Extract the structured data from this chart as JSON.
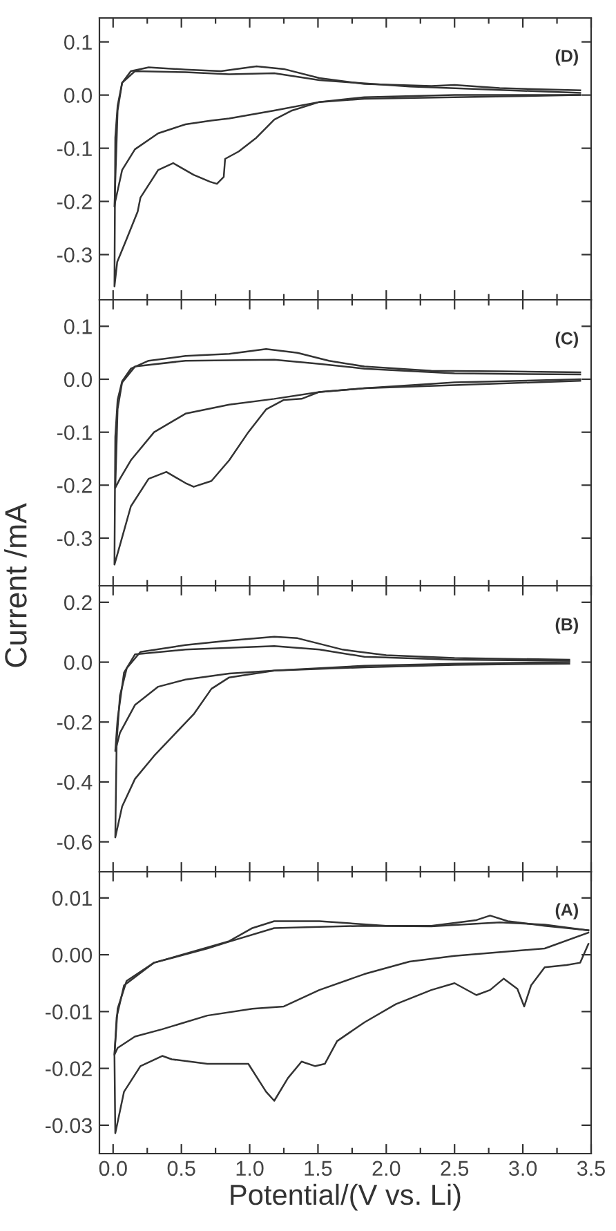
{
  "chart_data": [
    {
      "type": "line",
      "annotations": [
        "(D)"
      ],
      "tick_labels": "y",
      "grid": false,
      "legend": false,
      "xlim": [
        -0.1,
        3.5
      ],
      "ylim": [
        -0.385,
        0.145
      ],
      "xticks": [
        {
          "value": 0,
          "label": null
        },
        {
          "value": 0.25,
          "label": null
        },
        {
          "value": 0.5,
          "label": null
        },
        {
          "value": 0.75,
          "label": null
        },
        {
          "value": 1,
          "label": null
        },
        {
          "value": 1.25,
          "label": null
        },
        {
          "value": 1.5,
          "label": null
        },
        {
          "value": 1.75,
          "label": null
        },
        {
          "value": 2,
          "label": null
        },
        {
          "value": 2.25,
          "label": null
        },
        {
          "value": 2.5,
          "label": null
        },
        {
          "value": 2.75,
          "label": null
        },
        {
          "value": 3,
          "label": null
        },
        {
          "value": 3.25,
          "label": null
        },
        {
          "value": 3.5,
          "label": null
        }
      ],
      "yticks": [
        {
          "value": -0.3,
          "label": "-0.3"
        },
        {
          "value": -0.2,
          "label": "-0.2"
        },
        {
          "value": -0.1,
          "label": "-0.1"
        },
        {
          "value": 0,
          "label": "0.0"
        },
        {
          "value": 0.1,
          "label": "0.1"
        }
      ],
      "series": [
        {
          "color": "#333333",
          "x": [
            3.42,
            2.5,
            1.84,
            1.51,
            1.31,
            1.18,
            1.05,
            0.92,
            0.82,
            0.81,
            0.76,
            0.71,
            0.59,
            0.44,
            0.33,
            0.2,
            0.18,
            0.1,
            0.03,
            0.01,
            0.016,
            0.033,
            0.066,
            0.13,
            0.26,
            0.53,
            0.79,
            1.05,
            1.25,
            1.51,
            1.84,
            2.33,
            2.5,
            2.83,
            3.42
          ],
          "values": [
            0.0,
            -0.004,
            -0.007,
            -0.013,
            -0.029,
            -0.046,
            -0.08,
            -0.106,
            -0.12,
            -0.154,
            -0.167,
            -0.163,
            -0.15,
            -0.128,
            -0.141,
            -0.193,
            -0.219,
            -0.27,
            -0.314,
            -0.36,
            -0.08,
            -0.02,
            0.023,
            0.045,
            0.052,
            0.048,
            0.045,
            0.054,
            0.049,
            0.032,
            0.021,
            0.017,
            0.019,
            0.013,
            0.009
          ]
        },
        {
          "color": "#333333",
          "x": [
            3.42,
            2.5,
            1.84,
            1.51,
            1.18,
            0.85,
            0.72,
            0.53,
            0.33,
            0.16,
            0.066,
            0.016,
            0.01,
            0.033,
            0.066,
            0.16,
            0.53,
            0.85,
            1.18,
            1.51,
            2.17,
            3.42
          ],
          "values": [
            0.0,
            0.0,
            -0.004,
            -0.013,
            -0.029,
            -0.044,
            -0.048,
            -0.055,
            -0.072,
            -0.102,
            -0.141,
            -0.2,
            -0.21,
            -0.029,
            0.023,
            0.045,
            0.043,
            0.039,
            0.041,
            0.028,
            0.016,
            0.004
          ]
        }
      ]
    },
    {
      "type": "line",
      "annotations": [
        "(C)"
      ],
      "tick_labels": "y",
      "grid": false,
      "legend": false,
      "xlim": [
        -0.1,
        3.5
      ],
      "ylim": [
        -0.39,
        0.15
      ],
      "xticks": [
        {
          "value": 0,
          "label": null
        },
        {
          "value": 0.25,
          "label": null
        },
        {
          "value": 0.5,
          "label": null
        },
        {
          "value": 0.75,
          "label": null
        },
        {
          "value": 1,
          "label": null
        },
        {
          "value": 1.25,
          "label": null
        },
        {
          "value": 1.5,
          "label": null
        },
        {
          "value": 1.75,
          "label": null
        },
        {
          "value": 2,
          "label": null
        },
        {
          "value": 2.25,
          "label": null
        },
        {
          "value": 2.5,
          "label": null
        },
        {
          "value": 2.75,
          "label": null
        },
        {
          "value": 3,
          "label": null
        },
        {
          "value": 3.25,
          "label": null
        },
        {
          "value": 3.5,
          "label": null
        }
      ],
      "yticks": [
        {
          "value": -0.3,
          "label": "-0.3"
        },
        {
          "value": -0.2,
          "label": "-0.2"
        },
        {
          "value": -0.1,
          "label": "-0.1"
        },
        {
          "value": 0,
          "label": "0.0"
        },
        {
          "value": 0.1,
          "label": "0.1"
        }
      ],
      "series": [
        {
          "color": "#333333",
          "x": [
            3.42,
            2.5,
            1.84,
            1.51,
            1.38,
            1.25,
            1.12,
            0.99,
            0.85,
            0.72,
            0.59,
            0.53,
            0.39,
            0.26,
            0.13,
            0.01,
            0.016,
            0.033,
            0.066,
            0.13,
            0.26,
            0.53,
            0.85,
            1.12,
            1.35,
            1.58,
            1.84,
            2.33,
            2.83,
            3.42
          ],
          "values": [
            0.0,
            -0.006,
            -0.017,
            -0.024,
            -0.037,
            -0.039,
            -0.057,
            -0.1,
            -0.153,
            -0.192,
            -0.203,
            -0.196,
            -0.175,
            -0.188,
            -0.24,
            -0.35,
            -0.109,
            -0.039,
            -0.004,
            0.02,
            0.035,
            0.044,
            0.048,
            0.057,
            0.05,
            0.035,
            0.024,
            0.016,
            0.015,
            0.013
          ]
        },
        {
          "color": "#333333",
          "x": [
            3.42,
            2.5,
            1.84,
            1.51,
            1.18,
            0.85,
            0.53,
            0.3,
            0.13,
            0.05,
            0.016,
            0.033,
            0.066,
            0.16,
            0.53,
            1.18,
            1.51,
            1.84,
            2.5,
            3.42
          ],
          "values": [
            -0.003,
            -0.011,
            -0.017,
            -0.024,
            -0.037,
            -0.048,
            -0.065,
            -0.1,
            -0.153,
            -0.188,
            -0.205,
            -0.056,
            -0.006,
            0.024,
            0.035,
            0.037,
            0.029,
            0.02,
            0.011,
            0.009
          ]
        }
      ]
    },
    {
      "type": "line",
      "annotations": [
        "(B)"
      ],
      "tick_labels": "y",
      "grid": false,
      "legend": false,
      "xlim": [
        -0.1,
        3.5
      ],
      "ylim": [
        -0.7,
        0.255
      ],
      "xticks": [
        {
          "value": 0,
          "label": null
        },
        {
          "value": 0.25,
          "label": null
        },
        {
          "value": 0.5,
          "label": null
        },
        {
          "value": 0.75,
          "label": null
        },
        {
          "value": 1,
          "label": null
        },
        {
          "value": 1.25,
          "label": null
        },
        {
          "value": 1.5,
          "label": null
        },
        {
          "value": 1.75,
          "label": null
        },
        {
          "value": 2,
          "label": null
        },
        {
          "value": 2.25,
          "label": null
        },
        {
          "value": 2.5,
          "label": null
        },
        {
          "value": 2.75,
          "label": null
        },
        {
          "value": 3,
          "label": null
        },
        {
          "value": 3.25,
          "label": null
        },
        {
          "value": 3.5,
          "label": null
        }
      ],
      "yticks": [
        {
          "value": -0.6,
          "label": "-0.6"
        },
        {
          "value": -0.4,
          "label": "-0.4"
        },
        {
          "value": -0.2,
          "label": "-0.2"
        },
        {
          "value": 0,
          "label": "0.0"
        },
        {
          "value": 0.2,
          "label": "0.2"
        }
      ],
      "series": [
        {
          "color": "#333333",
          "x": [
            3.34,
            2.5,
            1.84,
            1.18,
            0.85,
            0.72,
            0.59,
            0.46,
            0.3,
            0.16,
            0.066,
            0.016,
            0.026,
            0.05,
            0.1,
            0.2,
            0.53,
            0.85,
            1.18,
            1.35,
            1.68,
            2.0,
            2.5,
            3.34
          ],
          "values": [
            0.0,
            -0.005,
            -0.012,
            -0.028,
            -0.051,
            -0.089,
            -0.174,
            -0.236,
            -0.313,
            -0.39,
            -0.482,
            -0.585,
            -0.266,
            -0.112,
            -0.02,
            0.034,
            0.057,
            0.072,
            0.085,
            0.08,
            0.042,
            0.023,
            0.014,
            0.008
          ]
        },
        {
          "color": "#333333",
          "x": [
            3.34,
            2.5,
            1.84,
            1.18,
            0.85,
            0.53,
            0.33,
            0.16,
            0.05,
            0.016,
            0.033,
            0.08,
            0.16,
            0.53,
            1.18,
            1.51,
            1.84,
            2.5,
            3.34
          ],
          "values": [
            -0.005,
            -0.009,
            -0.017,
            -0.028,
            -0.038,
            -0.058,
            -0.082,
            -0.143,
            -0.236,
            -0.297,
            -0.189,
            -0.035,
            0.026,
            0.042,
            0.054,
            0.042,
            0.018,
            0.008,
            0.005
          ]
        }
      ]
    },
    {
      "type": "line",
      "annotations": [
        "(A)"
      ],
      "xlabel": "Potential/(V vs. Li)",
      "ylabel": "Current /mA",
      "grid": false,
      "legend": false,
      "xlim": [
        -0.1,
        3.5
      ],
      "ylim": [
        -0.035,
        0.0146
      ],
      "xticks": [
        {
          "value": 0,
          "label": "0.0"
        },
        {
          "value": 0.25,
          "label": null
        },
        {
          "value": 0.5,
          "label": "0.5"
        },
        {
          "value": 0.75,
          "label": null
        },
        {
          "value": 1,
          "label": "1.0"
        },
        {
          "value": 1.25,
          "label": null
        },
        {
          "value": 1.5,
          "label": "1.5"
        },
        {
          "value": 1.75,
          "label": null
        },
        {
          "value": 2,
          "label": "2.0"
        },
        {
          "value": 2.25,
          "label": null
        },
        {
          "value": 2.5,
          "label": "2.5"
        },
        {
          "value": 2.75,
          "label": null
        },
        {
          "value": 3,
          "label": "3.0"
        },
        {
          "value": 3.25,
          "label": null
        },
        {
          "value": 3.5,
          "label": "3.5"
        }
      ],
      "yticks": [
        {
          "value": -0.03,
          "label": "-0.03"
        },
        {
          "value": -0.02,
          "label": "-0.02"
        },
        {
          "value": -0.01,
          "label": "-0.01"
        },
        {
          "value": 0,
          "label": "0.00"
        },
        {
          "value": 0.01,
          "label": "0.01"
        }
      ],
      "series": [
        {
          "color": "#333333",
          "x": [
            3.48,
            3.42,
            3.32,
            3.16,
            3.06,
            3.01,
            2.96,
            2.86,
            2.76,
            2.66,
            2.5,
            2.33,
            2.07,
            1.84,
            1.64,
            1.55,
            1.48,
            1.38,
            1.28,
            1.18,
            1.12,
            0.99,
            0.69,
            0.43,
            0.36,
            0.2,
            0.08,
            0.016,
            0.01,
            0.033,
            0.099,
            0.3,
            0.59,
            0.85,
            1.02,
            1.18,
            1.51,
            2.0,
            2.33,
            2.66,
            2.76,
            2.89,
            3.16,
            3.48
          ],
          "values": [
            0.0019,
            -0.0014,
            -0.0018,
            -0.0022,
            -0.0054,
            -0.0091,
            -0.006,
            -0.0042,
            -0.0062,
            -0.0071,
            -0.005,
            -0.0062,
            -0.0087,
            -0.0119,
            -0.0152,
            -0.0192,
            -0.0196,
            -0.0188,
            -0.0217,
            -0.0257,
            -0.0241,
            -0.0192,
            -0.0192,
            -0.0184,
            -0.0178,
            -0.0196,
            -0.0241,
            -0.0314,
            -0.0176,
            -0.0095,
            -0.0046,
            -0.0014,
            0.0006,
            0.0024,
            0.0047,
            0.0059,
            0.0059,
            0.0051,
            0.0051,
            0.0061,
            0.0069,
            0.0059,
            0.0051,
            0.0043
          ]
        },
        {
          "color": "#333333",
          "x": [
            3.48,
            3.16,
            2.5,
            2.17,
            1.84,
            1.51,
            1.25,
            1.02,
            0.69,
            0.36,
            0.16,
            0.033,
            0.01,
            0.026,
            0.08,
            0.3,
            0.69,
            0.85,
            1.18,
            1.84,
            2.33,
            2.83,
            3.16,
            3.48
          ],
          "values": [
            0.0039,
            0.0011,
            -0.0002,
            -0.0012,
            -0.0034,
            -0.0062,
            -0.0091,
            -0.0095,
            -0.0107,
            -0.0131,
            -0.0144,
            -0.0164,
            -0.0176,
            -0.011,
            -0.0054,
            -0.0014,
            0.0011,
            0.0023,
            0.0047,
            0.0051,
            0.005,
            0.0057,
            0.0053,
            0.0043
          ]
        }
      ]
    }
  ]
}
